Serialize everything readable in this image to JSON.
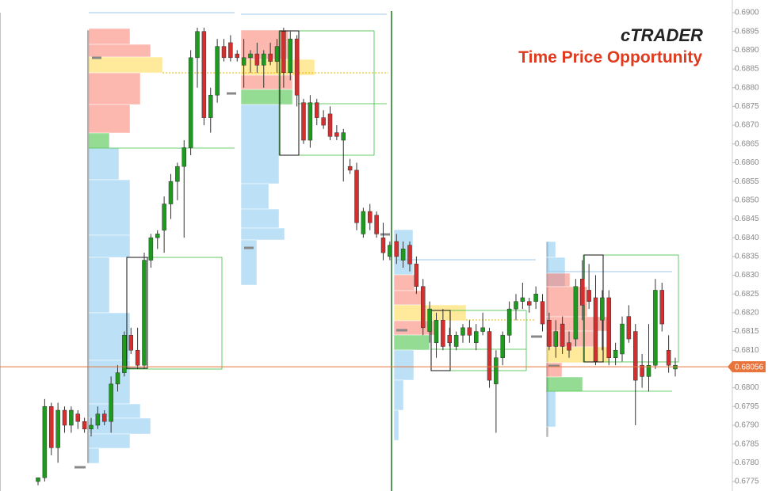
{
  "chart_data": {
    "type": "candlestick",
    "title": "Time Price Opportunity",
    "logo": "cTRADER",
    "current_price": 0.68056,
    "up_color": "#1e9a1e",
    "down_color": "#d42f2f",
    "ylim": [
      0.6775,
      0.69
    ],
    "yticks": [
      {
        "value": 0.69,
        "label": "0.6900"
      },
      {
        "value": 0.6895,
        "label": "0.6895"
      },
      {
        "value": 0.689,
        "label": "0.6890"
      },
      {
        "value": 0.6885,
        "label": "0.6885"
      },
      {
        "value": 0.688,
        "label": "0.6880"
      },
      {
        "value": 0.6875,
        "label": "0.6875"
      },
      {
        "value": 0.687,
        "label": "0.6870"
      },
      {
        "value": 0.6865,
        "label": "0.6865"
      },
      {
        "value": 0.686,
        "label": "0.6860"
      },
      {
        "value": 0.6855,
        "label": "0.6855"
      },
      {
        "value": 0.685,
        "label": "0.6850"
      },
      {
        "value": 0.6845,
        "label": "0.6845"
      },
      {
        "value": 0.684,
        "label": "0.6840"
      },
      {
        "value": 0.6835,
        "label": "0.6835"
      },
      {
        "value": 0.683,
        "label": "0.6830"
      },
      {
        "value": 0.6825,
        "label": "0.6825"
      },
      {
        "value": 0.682,
        "label": "0.6820"
      },
      {
        "value": 0.6815,
        "label": "0.6815"
      },
      {
        "value": 0.681,
        "label": "0.6810"
      },
      {
        "value": 0.6805,
        "label": "0.6805"
      },
      {
        "value": 0.68,
        "label": "0.6800"
      },
      {
        "value": 0.6795,
        "label": "0.6795"
      },
      {
        "value": 0.679,
        "label": "0.6790"
      },
      {
        "value": 0.6785,
        "label": "0.6785"
      },
      {
        "value": 0.678,
        "label": "0.6780"
      },
      {
        "value": 0.6775,
        "label": "0.6775"
      }
    ],
    "categories": [
      null,
      null,
      null,
      null,
      null,
      null,
      null,
      null,
      null,
      null,
      null,
      null,
      null,
      null,
      null,
      null,
      null,
      null,
      null,
      null,
      null,
      null,
      null,
      null,
      null,
      null,
      null,
      null,
      null,
      null,
      null,
      null,
      null,
      null,
      null,
      null,
      null,
      null,
      null,
      null,
      null,
      null,
      null,
      null,
      null,
      null,
      null,
      null,
      null,
      null,
      null,
      null,
      null,
      null,
      null,
      null,
      null,
      null,
      null,
      null,
      null,
      null,
      null,
      null,
      null,
      null,
      null,
      null,
      null,
      null,
      null,
      null,
      null,
      null,
      null,
      null,
      null,
      null,
      null,
      null,
      null,
      null,
      null,
      null,
      null,
      null,
      null,
      null,
      null,
      null,
      null,
      null,
      null,
      null,
      null,
      null,
      null
    ],
    "open": [
      0.6775,
      0.6776,
      0.6795,
      0.6784,
      0.6794,
      0.679,
      0.6793,
      0.6791,
      0.6789,
      0.679,
      0.6793,
      0.6791,
      0.6801,
      0.6804,
      0.6814,
      0.681,
      0.6806,
      0.6834,
      0.684,
      0.6842,
      0.6849,
      0.6855,
      0.6859,
      0.6864,
      0.6888,
      0.6895,
      0.6872,
      0.6878,
      0.6891,
      0.6892,
      0.6889,
      0.6886,
      0.6888,
      0.6889,
      0.6886,
      0.6889,
      0.6887,
      0.6895,
      0.6884,
      0.6893,
      0.6876,
      0.6866,
      0.6876,
      0.6872,
      0.6873,
      0.6868,
      0.6866,
      0.6859,
      0.6858,
      0.6841,
      0.6847,
      0.6846,
      0.684,
      0.6835,
      0.6839,
      0.6834,
      0.6838,
      0.6833,
      0.6827,
      0.6815,
      0.6812,
      0.6818,
      0.6814,
      0.6811,
      0.6814,
      0.6816,
      0.6812,
      0.6815,
      0.6815,
      0.6801,
      0.6808,
      0.6814,
      0.6821,
      0.6823,
      0.6823,
      0.6823,
      0.6823,
      0.6818,
      0.6811,
      0.6817,
      0.6812,
      0.6813,
      0.6829,
      0.6826,
      0.6824,
      0.6818,
      0.6824,
      0.6808,
      0.6809,
      0.6819,
      0.6815,
      0.6806,
      0.6803,
      0.6806,
      0.6826,
      0.681,
      0.6805
    ],
    "high": [
      0.6776,
      0.6797,
      0.6796,
      0.6796,
      0.6795,
      0.6795,
      0.6794,
      0.6792,
      0.6792,
      0.6795,
      0.6794,
      0.6803,
      0.6806,
      0.6815,
      0.6816,
      0.6816,
      0.6836,
      0.6841,
      0.6842,
      0.6851,
      0.6857,
      0.686,
      0.6866,
      0.689,
      0.6896,
      0.6896,
      0.688,
      0.6893,
      0.6893,
      0.6894,
      0.689,
      0.6893,
      0.689,
      0.6892,
      0.689,
      0.6892,
      0.6893,
      0.6896,
      0.6895,
      0.6894,
      0.6877,
      0.6878,
      0.6877,
      0.6874,
      0.6875,
      0.687,
      0.6869,
      0.6861,
      0.686,
      0.6848,
      0.6849,
      0.6847,
      0.6844,
      0.6839,
      0.6841,
      0.6839,
      0.6839,
      0.6835,
      0.6829,
      0.6823,
      0.682,
      0.6821,
      0.6816,
      0.6815,
      0.6817,
      0.6818,
      0.6817,
      0.682,
      0.6816,
      0.681,
      0.6815,
      0.6823,
      0.6825,
      0.6828,
      0.6824,
      0.6827,
      0.6825,
      0.682,
      0.6818,
      0.6819,
      0.6815,
      0.6829,
      0.6834,
      0.6833,
      0.683,
      0.6826,
      0.6826,
      0.6812,
      0.6819,
      0.6822,
      0.6817,
      0.6809,
      0.6817,
      0.6829,
      0.6828,
      0.6814,
      0.6808
    ],
    "low": [
      0.6774,
      0.6775,
      0.6782,
      0.678,
      0.6788,
      0.6788,
      0.6789,
      0.6788,
      0.6787,
      0.6789,
      0.679,
      0.6788,
      0.6799,
      0.6803,
      0.6809,
      0.6805,
      0.6805,
      0.6832,
      0.6837,
      0.6836,
      0.6845,
      0.685,
      0.684,
      0.6862,
      0.688,
      0.687,
      0.6868,
      0.6876,
      0.6887,
      0.6887,
      0.6887,
      0.688,
      0.6884,
      0.6884,
      0.688,
      0.6886,
      0.6884,
      0.688,
      0.6882,
      0.6875,
      0.6865,
      0.6864,
      0.687,
      0.6869,
      0.6866,
      0.6866,
      0.6855,
      0.6857,
      0.6842,
      0.684,
      0.6842,
      0.684,
      0.6834,
      0.6834,
      0.6833,
      0.6832,
      0.6831,
      0.6825,
      0.6814,
      0.6812,
      0.6808,
      0.681,
      0.6811,
      0.681,
      0.6812,
      0.6812,
      0.681,
      0.6814,
      0.68,
      0.6788,
      0.6806,
      0.6812,
      0.6818,
      0.6821,
      0.682,
      0.6821,
      0.6815,
      0.681,
      0.6808,
      0.6809,
      0.6808,
      0.6811,
      0.6818,
      0.6821,
      0.6806,
      0.681,
      0.6806,
      0.6806,
      0.6807,
      0.6812,
      0.679,
      0.68,
      0.6799,
      0.6805,
      0.6815,
      0.6804,
      0.6803
    ],
    "close": [
      0.6776,
      0.6795,
      0.6784,
      0.6794,
      0.679,
      0.6794,
      0.6791,
      0.6789,
      0.679,
      0.6793,
      0.6791,
      0.6801,
      0.6804,
      0.6814,
      0.681,
      0.6806,
      0.6834,
      0.684,
      0.6841,
      0.6849,
      0.6855,
      0.6859,
      0.6864,
      0.6888,
      0.6895,
      0.6872,
      0.6878,
      0.6891,
      0.6888,
      0.6888,
      0.6888,
      0.6888,
      0.6889,
      0.6886,
      0.6889,
      0.6887,
      0.6891,
      0.6884,
      0.6893,
      0.6878,
      0.6866,
      0.6876,
      0.6872,
      0.687,
      0.6867,
      0.6867,
      0.6868,
      0.6858,
      0.6844,
      0.6847,
      0.6844,
      0.6841,
      0.6836,
      0.6838,
      0.6835,
      0.6837,
      0.6833,
      0.6827,
      0.6816,
      0.6821,
      0.6818,
      0.6811,
      0.6812,
      0.6814,
      0.6816,
      0.6814,
      0.6815,
      0.6816,
      0.6802,
      0.6808,
      0.6814,
      0.6821,
      0.6823,
      0.6824,
      0.6822,
      0.6825,
      0.6817,
      0.6811,
      0.6815,
      0.6811,
      0.681,
      0.6827,
      0.6822,
      0.6823,
      0.6807,
      0.6824,
      0.6808,
      0.681,
      0.6817,
      0.6813,
      0.6802,
      0.6803,
      0.6806,
      0.6826,
      0.6817,
      0.6806,
      0.6806
    ]
  }
}
